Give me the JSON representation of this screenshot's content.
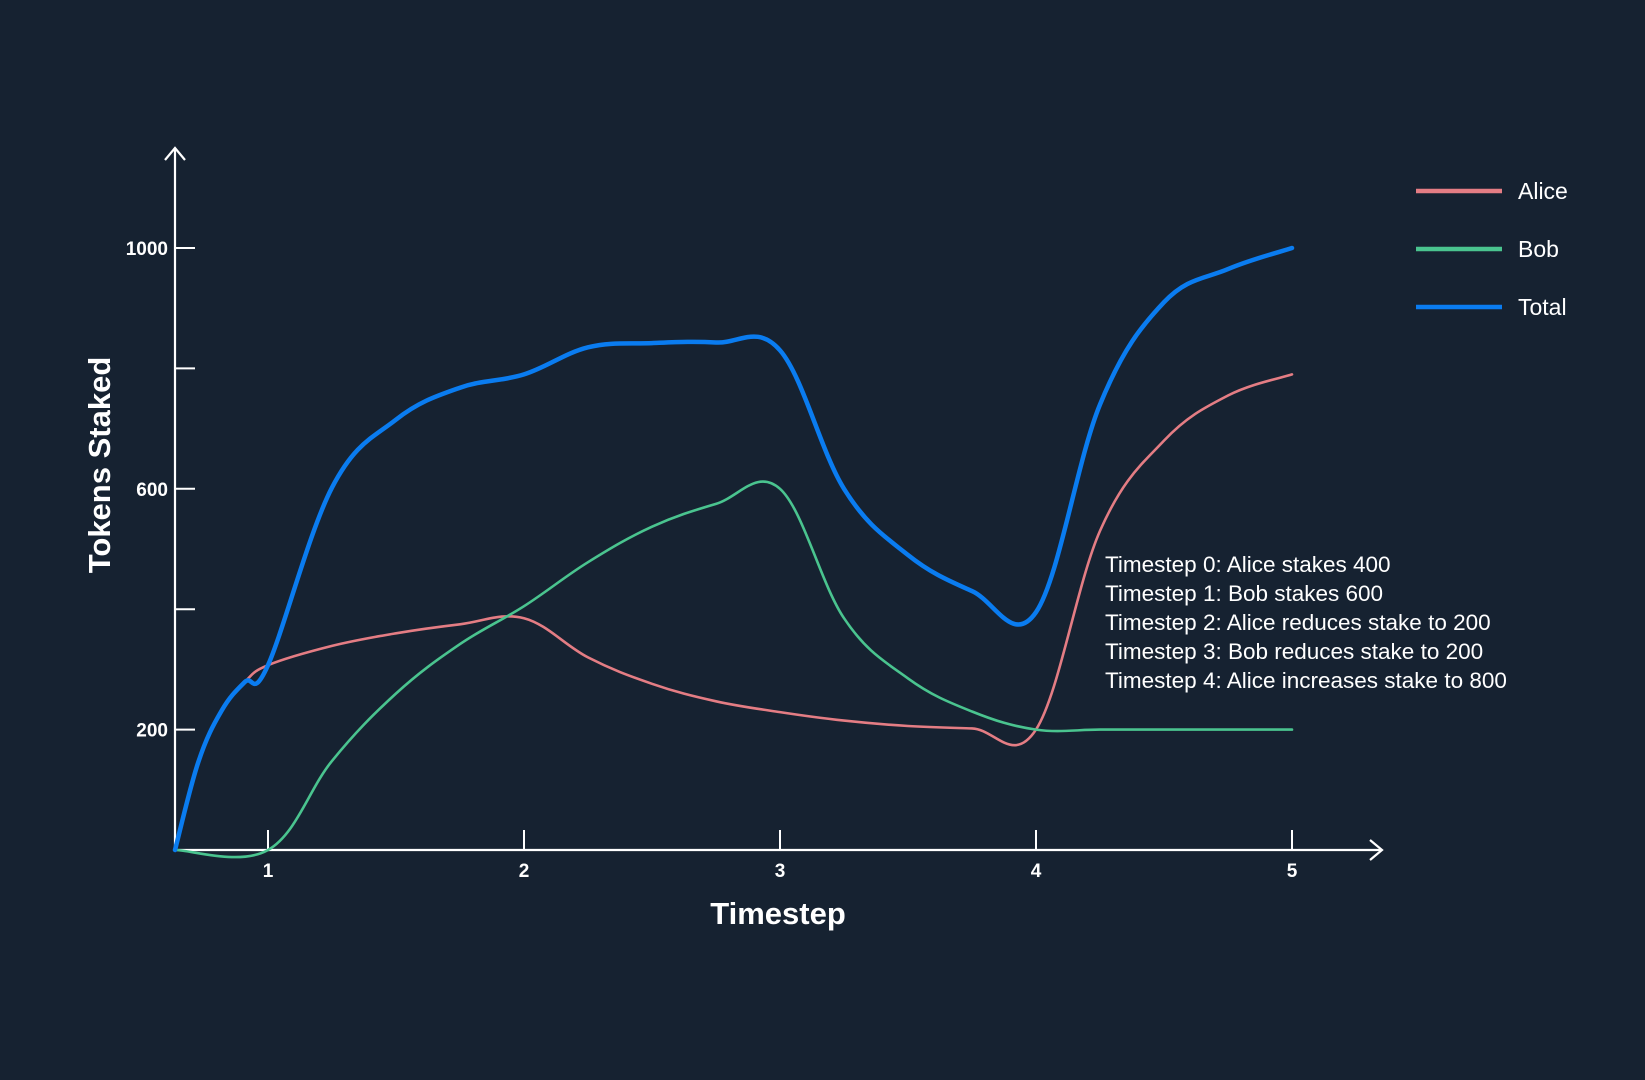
{
  "chart_data": {
    "type": "line",
    "xlabel": "Timestep",
    "ylabel": "Tokens Staked",
    "xlim": [
      0,
      5
    ],
    "ylim": [
      0,
      1100
    ],
    "x_ticks": [
      1,
      2,
      3,
      4,
      5
    ],
    "y_ticks": [
      200,
      400,
      600,
      800,
      1000
    ],
    "y_tick_labels": [
      "200",
      "",
      "600",
      "",
      "1000"
    ],
    "grid": false,
    "legend_position": "top-right",
    "series": [
      {
        "name": "Alice",
        "color": "#E47D84",
        "x": [
          0,
          0.25,
          0.5,
          0.75,
          1,
          1.25,
          1.5,
          1.75,
          2,
          2.25,
          2.5,
          2.75,
          3,
          3.25,
          3.5,
          3.75,
          4,
          4.25,
          4.5,
          4.75,
          5
        ],
        "y": [
          0,
          146,
          231,
          279,
          307,
          339,
          360,
          375,
          385,
          320,
          276,
          247,
          229,
          215,
          206,
          202,
          200,
          530,
          680,
          755,
          790
        ]
      },
      {
        "name": "Bob",
        "color": "#4AC48F",
        "x": [
          0,
          1,
          1.25,
          1.5,
          1.75,
          2,
          2.25,
          2.5,
          2.75,
          3,
          3.25,
          3.5,
          3.75,
          4,
          4.25,
          4.5,
          4.75,
          5
        ],
        "y": [
          0,
          0,
          148,
          260,
          342,
          405,
          478,
          537,
          575,
          600,
          385,
          285,
          230,
          200,
          200,
          200,
          200,
          200
        ]
      },
      {
        "name": "Total",
        "color": "#0A7CF0",
        "x": [
          0,
          0.25,
          0.5,
          0.75,
          1,
          1.25,
          1.5,
          1.75,
          2,
          2.25,
          2.5,
          2.75,
          3,
          3.25,
          3.5,
          3.75,
          4,
          4.25,
          4.5,
          4.75,
          5
        ],
        "y": [
          0,
          146,
          231,
          279,
          307,
          602,
          715,
          768,
          790,
          835,
          842,
          843,
          830,
          600,
          490,
          430,
          395,
          740,
          910,
          965,
          1000
        ]
      }
    ],
    "annotations": [
      "Timestep 0: Alice stakes 400",
      "Timestep 1: Bob stakes 600",
      "Timestep 2: Alice reduces stake to 200",
      "Timestep 3: Bob reduces stake to 200",
      "Timestep 4: Alice increases stake to 800"
    ]
  }
}
